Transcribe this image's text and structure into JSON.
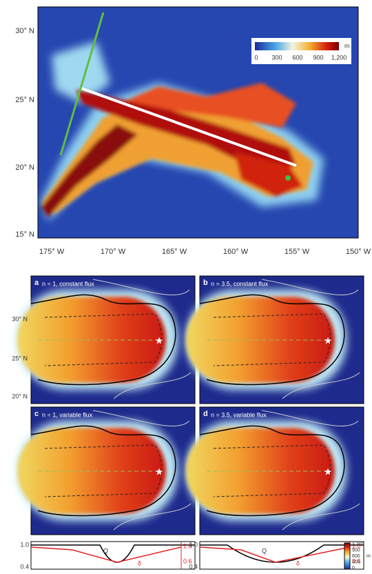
{
  "map": {
    "yticks": [
      "30° N",
      "25° N",
      "20° N",
      "15° N"
    ],
    "xticks": [
      "175° W",
      "170° W",
      "165° W",
      "160° W",
      "155° W",
      "150° W"
    ],
    "colorbar": {
      "unit": "m",
      "ticks": [
        "0",
        "300",
        "600",
        "900",
        "1,200"
      ]
    }
  },
  "panel_yticks": [
    "30° N",
    "25° N",
    "20° N"
  ],
  "panels": [
    {
      "label": "a",
      "text": "n = 1, constant flux"
    },
    {
      "label": "b",
      "text": "n = 3.5, constant flux"
    },
    {
      "label": "c",
      "text": "n = 1, variable flux"
    },
    {
      "label": "d",
      "text": "n = 3.5, variable flux"
    }
  ],
  "profiles": {
    "left_axis": [
      "1.0",
      "0.4"
    ],
    "right_axis": [
      "1.0",
      "0.6"
    ],
    "curve_q": "Q",
    "curve_delta": "δ"
  },
  "side_colorbar": {
    "unit": "m",
    "ticks": [
      "1,200",
      "900",
      "600",
      "300",
      "0"
    ]
  }
}
